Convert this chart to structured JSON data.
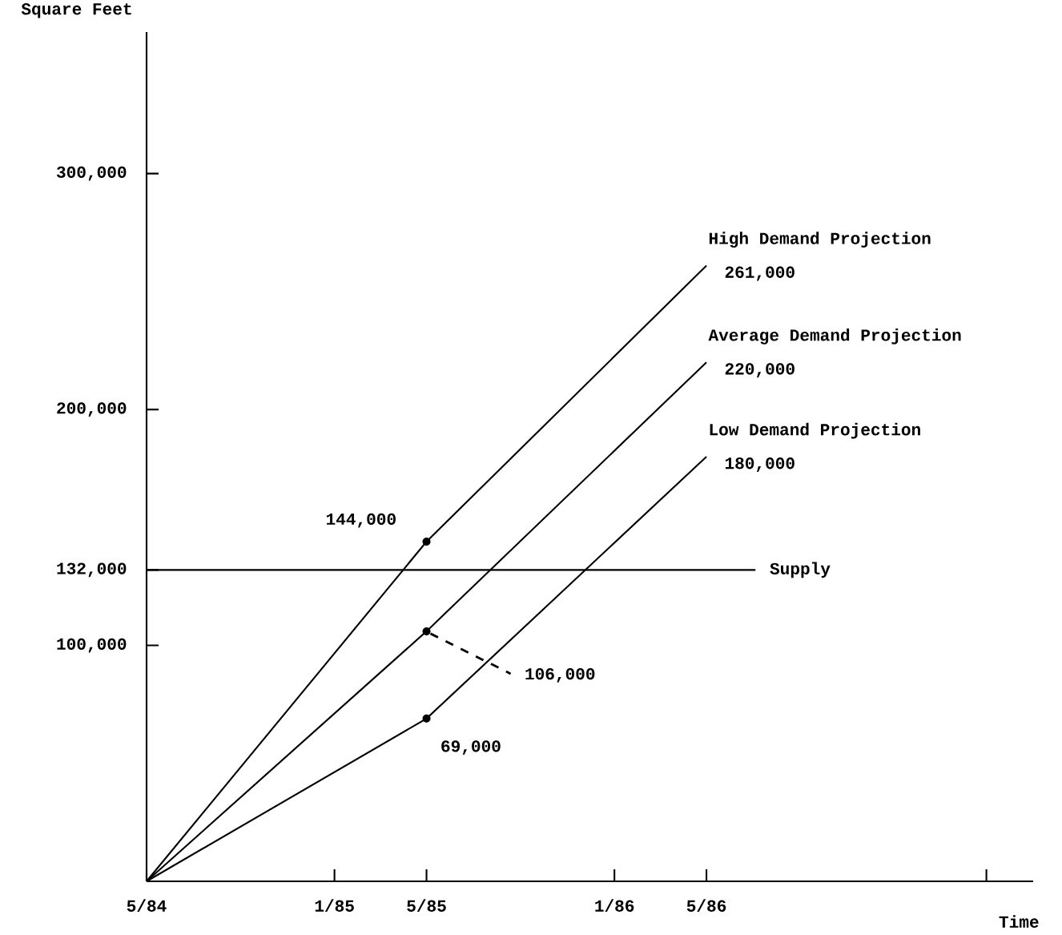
{
  "chart_data": {
    "type": "line",
    "xlabel": "Time",
    "ylabel": "Square Feet",
    "xlim": [
      "1984-05",
      "1987-07"
    ],
    "xticks": [
      {
        "value": "1984-05",
        "label": "5/84"
      },
      {
        "value": "1985-01",
        "label": "1/85"
      },
      {
        "value": "1985-05",
        "label": "5/85"
      },
      {
        "value": "1986-01",
        "label": "1/86"
      },
      {
        "value": "1986-05",
        "label": "5/86"
      },
      {
        "value": "1987-05",
        "label": null
      }
    ],
    "ylim": [
      0,
      360000
    ],
    "yticks": [
      {
        "value": 100000,
        "label": "100,000"
      },
      {
        "value": 132000,
        "label": "132,000"
      },
      {
        "value": 200000,
        "label": "200,000"
      },
      {
        "value": 300000,
        "label": "300,000"
      }
    ],
    "series": [
      {
        "name": "High Demand Projection",
        "color": "#000000",
        "x": [
          "1984-05",
          "1985-05",
          "1986-05"
        ],
        "values": [
          0,
          144000,
          261000
        ],
        "value_labels": [
          null,
          "144,000",
          "261,000"
        ]
      },
      {
        "name": "Average Demand Projection",
        "color": "#000000",
        "x": [
          "1984-05",
          "1985-05",
          "1986-05"
        ],
        "values": [
          0,
          106000,
          220000
        ],
        "value_labels": [
          null,
          "106,000",
          "220,000"
        ]
      },
      {
        "name": "Low Demand Projection",
        "color": "#000000",
        "x": [
          "1984-05",
          "1985-05",
          "1986-05"
        ],
        "values": [
          0,
          69000,
          180000
        ],
        "value_labels": [
          null,
          "69,000",
          "180,000"
        ]
      }
    ],
    "ref_lines": [
      {
        "axis": "y",
        "value": 132000,
        "label": "Supply",
        "color": "#000000"
      }
    ]
  }
}
